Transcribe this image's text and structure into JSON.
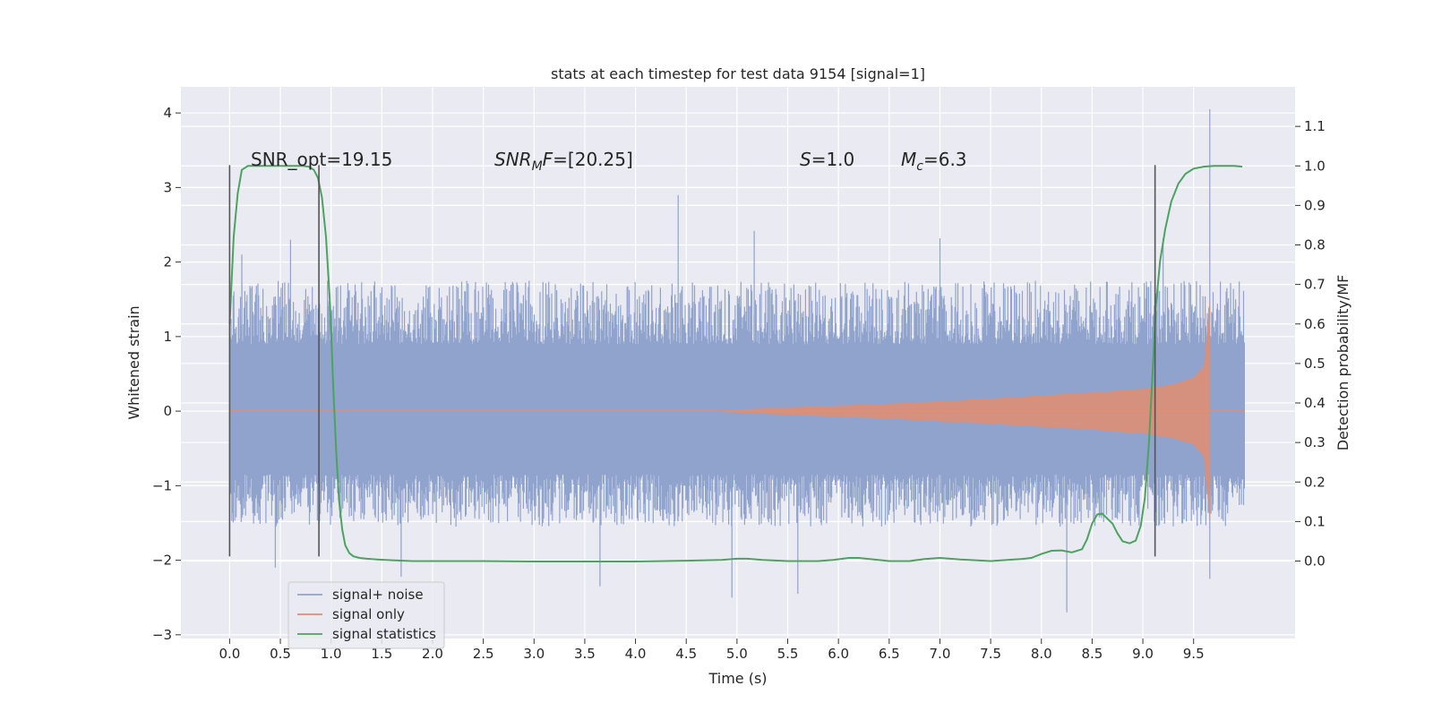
{
  "chart_data": {
    "type": "line",
    "title": "stats at each timestep for test data 9154 [signal=1]",
    "xlabel": "Time (s)",
    "ylabel": "Whitened strain",
    "ylabel_right": "Detection probability/MF",
    "xlim": [
      -0.48,
      10.5
    ],
    "ylim": [
      -3.05,
      4.35
    ],
    "ylim_right": [
      -0.196,
      1.2
    ],
    "x_ticks": [
      "0.0",
      "0.5",
      "1.0",
      "1.5",
      "2.0",
      "2.5",
      "3.0",
      "3.5",
      "4.0",
      "4.5",
      "5.0",
      "5.5",
      "6.0",
      "6.5",
      "7.0",
      "7.5",
      "8.0",
      "8.5",
      "9.0",
      "9.5"
    ],
    "y_ticks": [
      "−3",
      "−2",
      "−1",
      "0",
      "1",
      "2",
      "3",
      "4"
    ],
    "y_ticks_right": [
      "0.0",
      "0.1",
      "0.2",
      "0.3",
      "0.4",
      "0.5",
      "0.6",
      "0.7",
      "0.8",
      "0.9",
      "1.0",
      "1.1"
    ],
    "grid": true,
    "legend_position": "lower-left",
    "annotations": {
      "snr_opt": "SNR_opt=19.15",
      "snr_mf": "[20.25]",
      "snr_mf_symbol": "SNR",
      "snr_mf_sub": "M",
      "snr_mf_tail": "F=",
      "s_symbol": "S",
      "s_value": "=1.0",
      "mc_symbol": "M",
      "mc_sub": "c",
      "mc_value": "=6.3"
    },
    "segment_markers_x": [
      0.0,
      0.88,
      9.12
    ],
    "segment_markers_yrange": [
      -1.95,
      3.3
    ],
    "series": [
      {
        "name": "signal+ noise",
        "color": "#8fa3cc",
        "envelope": {
          "x_range": [
            0.0,
            10.0
          ],
          "core_band": [
            -0.62,
            0.68
          ],
          "typical_upper": 1.75,
          "typical_lower": -1.55,
          "notable_peaks": [
            [
              0.12,
              2.1
            ],
            [
              0.6,
              2.3
            ],
            [
              4.42,
              2.9
            ],
            [
              5.17,
              2.42
            ],
            [
              7.0,
              2.32
            ],
            [
              9.2,
              2.32
            ],
            [
              9.66,
              4.05
            ]
          ],
          "notable_troughs": [
            [
              0.45,
              -2.1
            ],
            [
              1.69,
              -2.22
            ],
            [
              3.65,
              -2.35
            ],
            [
              4.95,
              -2.5
            ],
            [
              5.6,
              -2.45
            ],
            [
              8.25,
              -2.7
            ],
            [
              9.66,
              -2.25
            ]
          ]
        }
      },
      {
        "name": "signal only",
        "color": "#dd8f76",
        "chirp_amplitude": {
          "x": [
            4.7,
            5.5,
            6.5,
            7.5,
            8.0,
            8.5,
            9.0,
            9.3,
            9.5,
            9.6,
            9.66
          ],
          "y": [
            0.0,
            0.05,
            0.1,
            0.17,
            0.21,
            0.25,
            0.3,
            0.36,
            0.45,
            0.6,
            1.5
          ]
        }
      },
      {
        "name": "signal statistics",
        "color": "#4ca35f",
        "axis": "right",
        "x": [
          0.0,
          0.04,
          0.08,
          0.12,
          0.18,
          0.25,
          0.35,
          0.45,
          0.55,
          0.65,
          0.72,
          0.78,
          0.83,
          0.87,
          0.91,
          0.95,
          0.99,
          1.02,
          1.05,
          1.08,
          1.11,
          1.14,
          1.18,
          1.22,
          1.28,
          1.35,
          1.45,
          1.6,
          1.8,
          2.0,
          2.5,
          3.0,
          3.5,
          4.0,
          4.5,
          4.85,
          5.0,
          5.1,
          5.25,
          5.5,
          5.8,
          5.95,
          6.1,
          6.2,
          6.35,
          6.5,
          6.7,
          6.85,
          7.0,
          7.2,
          7.5,
          7.8,
          7.9,
          8.0,
          8.1,
          8.2,
          8.3,
          8.4,
          8.45,
          8.5,
          8.55,
          8.6,
          8.7,
          8.75,
          8.8,
          8.87,
          8.93,
          8.98,
          9.02,
          9.06,
          9.1,
          9.13,
          9.17,
          9.22,
          9.28,
          9.35,
          9.42,
          9.5,
          9.6,
          9.7,
          9.8,
          9.9,
          9.98
        ],
        "y": [
          0.6,
          0.82,
          0.93,
          0.99,
          1.0,
          1.0,
          1.0,
          1.0,
          1.0,
          1.0,
          1.0,
          0.998,
          0.99,
          0.97,
          0.92,
          0.82,
          0.65,
          0.45,
          0.28,
          0.15,
          0.08,
          0.04,
          0.02,
          0.012,
          0.008,
          0.006,
          0.004,
          0.002,
          0.0,
          0.0,
          0.0,
          -0.001,
          -0.001,
          -0.001,
          0.001,
          0.003,
          0.006,
          0.006,
          0.003,
          0.0,
          0.0,
          0.003,
          0.008,
          0.008,
          0.004,
          0.0,
          0.0,
          0.005,
          0.008,
          0.004,
          0.0,
          0.005,
          0.008,
          0.018,
          0.026,
          0.027,
          0.022,
          0.03,
          0.055,
          0.095,
          0.118,
          0.12,
          0.095,
          0.07,
          0.05,
          0.045,
          0.052,
          0.09,
          0.16,
          0.3,
          0.5,
          0.65,
          0.76,
          0.84,
          0.91,
          0.955,
          0.98,
          0.993,
          0.998,
          1.0,
          1.0,
          1.0,
          0.998
        ]
      }
    ]
  }
}
